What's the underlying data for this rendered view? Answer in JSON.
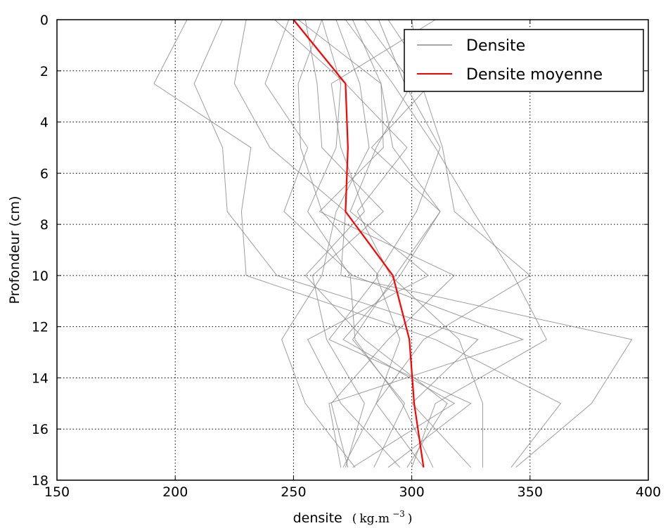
{
  "chart_data": {
    "type": "line",
    "orientation": "depth-profile",
    "xlabel": "densite",
    "xlabel_unit": "kg.m",
    "xlabel_unit_exponent": "−3",
    "xlabel_unit_open": "(",
    "xlabel_unit_close": ")",
    "ylabel": "Profondeur (cm)",
    "xlim": [
      150,
      400
    ],
    "ylim": [
      18,
      0
    ],
    "y_inverted": true,
    "grid": true,
    "legend_position": "top-right",
    "xticks": [
      "150",
      "200",
      "250",
      "300",
      "350",
      "400"
    ],
    "yticks": [
      "0",
      "2",
      "4",
      "6",
      "8",
      "10",
      "12",
      "14",
      "16",
      "18"
    ],
    "depths": [
      0,
      2.5,
      5,
      7.5,
      10,
      12.5,
      15,
      17.5
    ],
    "series": [
      {
        "name": "Densite",
        "color": "#8c8c8c",
        "role": "profiles"
      },
      {
        "name": "Densite moyenne",
        "color": "#ff0000",
        "role": "mean"
      }
    ],
    "profiles": [
      [
        205,
        191,
        232,
        228,
        230,
        310,
        363,
        342
      ],
      [
        220,
        208,
        220,
        222,
        243,
        328,
        300,
        325
      ],
      [
        230,
        225,
        240,
        272,
        270,
        393,
        376,
        344
      ],
      [
        248,
        238,
        256,
        246,
        275,
        347,
        265,
        270
      ],
      [
        255,
        260,
        262,
        288,
        258,
        264,
        280,
        272
      ],
      [
        262,
        252,
        253,
        262,
        286,
        265,
        325,
        290
      ],
      [
        268,
        278,
        282,
        268,
        262,
        245,
        255,
        276
      ],
      [
        275,
        287,
        292,
        312,
        293,
        275,
        297,
        284
      ],
      [
        280,
        300,
        285,
        274,
        307,
        256,
        270,
        295
      ],
      [
        262,
        270,
        268,
        256,
        274,
        276,
        296,
        309
      ],
      [
        272,
        292,
        310,
        326,
        343,
        357,
        310,
        300
      ],
      [
        242,
        272,
        298,
        277,
        291,
        320,
        330,
        330
      ],
      [
        286,
        297,
        312,
        302,
        285,
        295,
        285,
        305
      ],
      [
        290,
        308,
        283,
        312,
        295,
        271,
        318,
        275
      ],
      [
        300,
        304,
        313,
        318,
        350,
        305,
        285,
        271
      ],
      [
        252,
        287,
        288,
        261,
        318,
        290,
        266,
        273
      ],
      [
        310,
        266,
        270,
        280,
        255,
        280,
        315,
        298
      ]
    ],
    "mean": [
      250,
      272,
      273,
      272,
      292,
      299,
      301,
      305
    ]
  }
}
